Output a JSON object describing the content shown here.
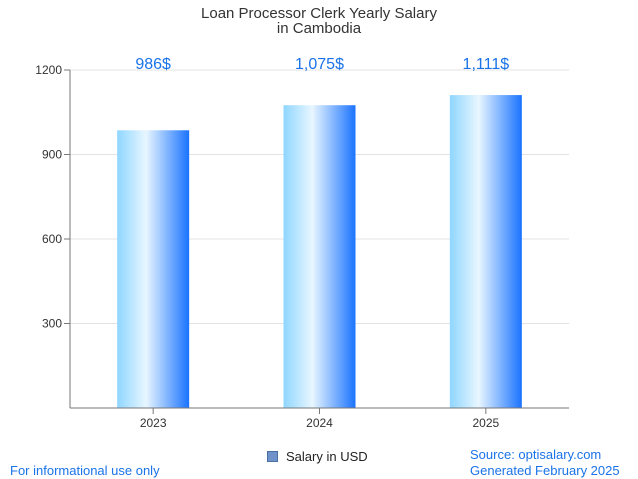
{
  "chart_data": {
    "type": "bar",
    "title": [
      "Loan Processor Clerk Yearly Salary",
      "in Cambodia"
    ],
    "categories": [
      "2023",
      "2024",
      "2025"
    ],
    "series": [
      {
        "name": "Salary in USD",
        "values": [
          986,
          1075,
          1111
        ]
      }
    ],
    "data_labels": [
      "986$",
      "1,075$",
      "1,111$"
    ],
    "yticks": [
      300,
      600,
      900,
      1200
    ],
    "ylim": [
      0,
      1200
    ],
    "grid": true,
    "legend_position": "bottom"
  },
  "footer": {
    "disclaimer": "For informational use only",
    "source": "Source: optisalary.com",
    "generated": "Generated February 2025"
  },
  "colors": {
    "bar_light": "#e8f6ff",
    "bar_mid": "#8fd6ff",
    "bar_dark": "#1a73ff",
    "grid": "#e3e3e3",
    "axis": "#777777"
  }
}
